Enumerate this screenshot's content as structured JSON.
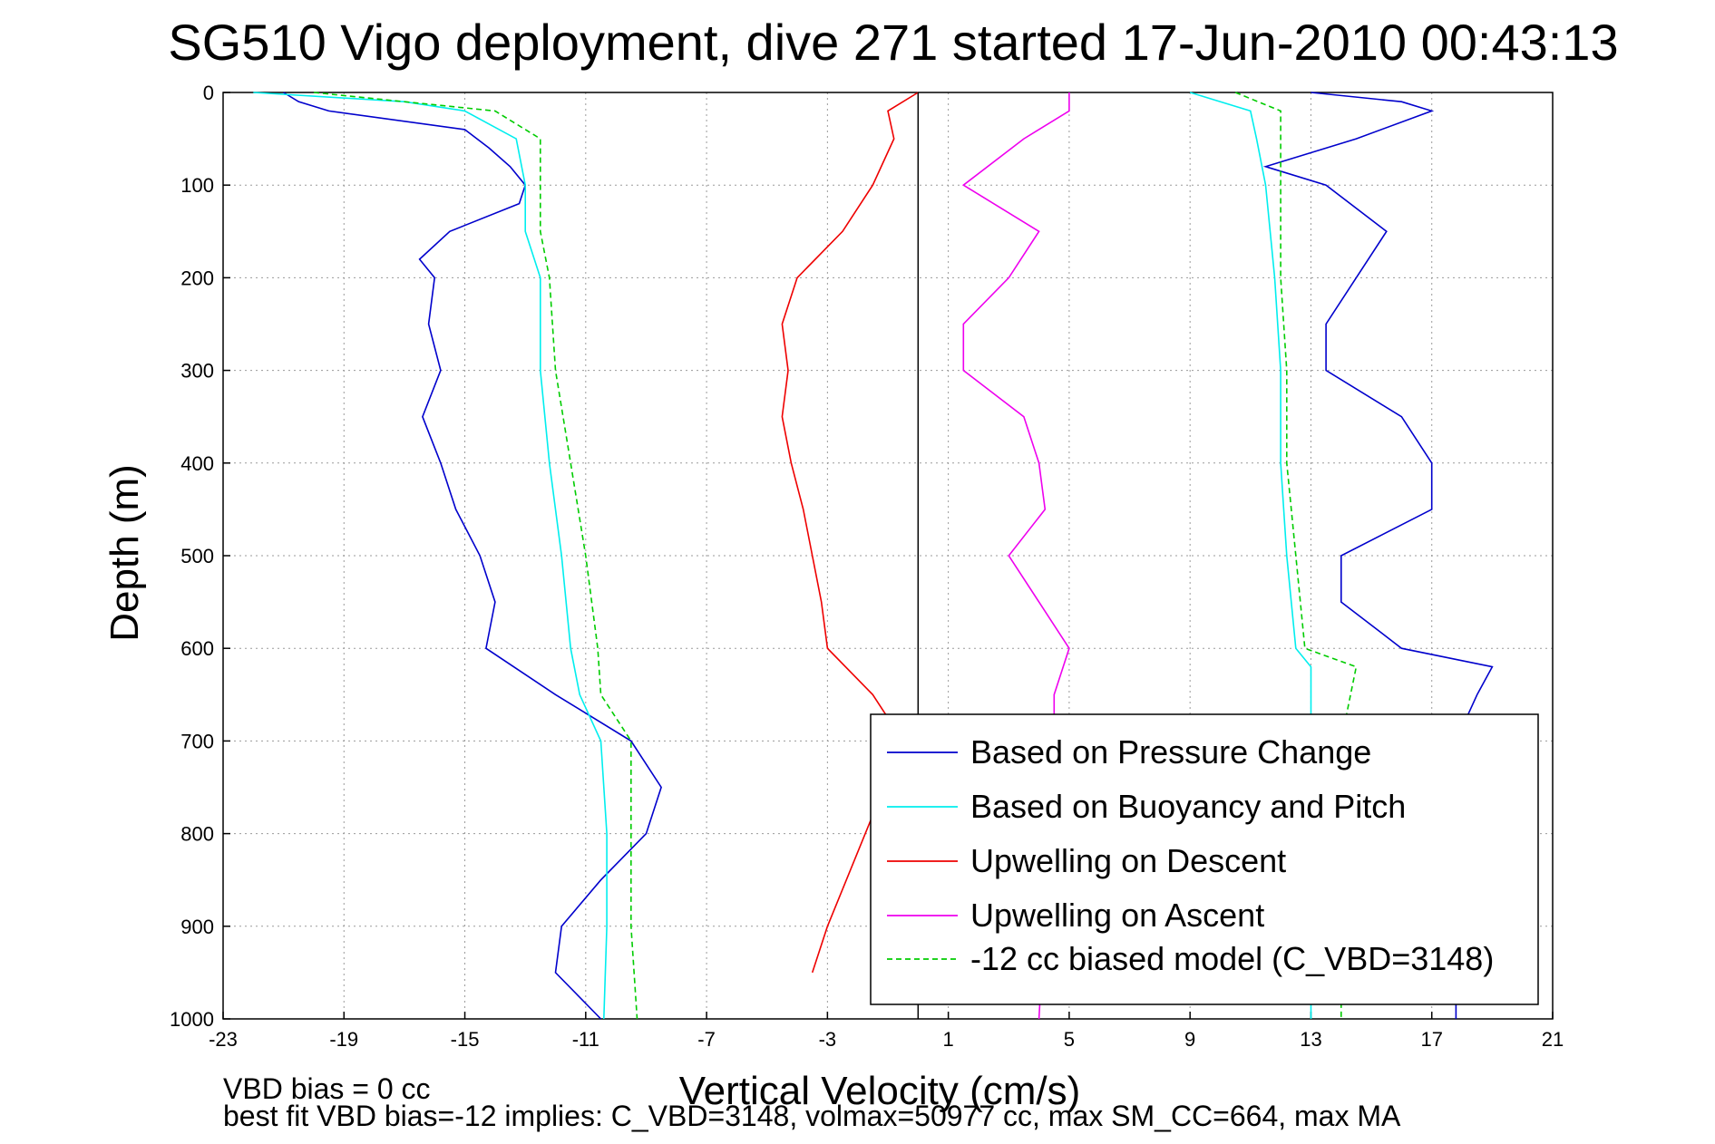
{
  "chart_data": {
    "type": "line",
    "title": "SG510 Vigo deployment, dive 271 started 17-Jun-2010 00:43:13",
    "xlabel": "Vertical Velocity (cm/s)",
    "ylabel": "Depth (m)",
    "xlim": [
      -23,
      21
    ],
    "ylim": [
      0,
      1000
    ],
    "y_reversed": true,
    "grid": true,
    "legend_position": "bottom-right",
    "x_ticks": [
      "-23",
      "-19",
      "-15",
      "-11",
      "-7",
      "-3",
      "1",
      "5",
      "9",
      "13",
      "17",
      "21"
    ],
    "y_ticks": [
      "0",
      "100",
      "200",
      "300",
      "400",
      "500",
      "600",
      "700",
      "800",
      "900",
      "1000"
    ],
    "vertical_reference_line_x": 0,
    "notes": [
      "VBD bias = 0 cc",
      "best fit VBD bias=-12 implies: C_VBD=3148, volmax=50977 cc, max SM_CC=664, max MA"
    ],
    "series": [
      {
        "name": "Based on Pressure Change",
        "color": "#0000cc",
        "style": "solid",
        "depth": [
          0,
          10,
          20,
          40,
          60,
          80,
          100,
          120,
          150,
          180,
          200,
          250,
          300,
          350,
          400,
          450,
          500,
          550,
          600,
          650,
          700,
          750,
          800,
          850,
          900,
          950,
          1000
        ],
        "velocity": [
          -21,
          -20.5,
          -19.5,
          -15,
          -14.2,
          -13.5,
          -13,
          -13.2,
          -15.5,
          -16.5,
          -16,
          -16.2,
          -15.8,
          -16.4,
          -15.8,
          -15.3,
          -14.5,
          -14,
          -14.3,
          -12,
          -9.5,
          -8.5,
          -9,
          -10.5,
          -11.8,
          -12,
          -10.5
        ],
        "depth_ascent": [
          0,
          10,
          20,
          50,
          80,
          100,
          150,
          200,
          250,
          300,
          350,
          400,
          450,
          500,
          550,
          600,
          620,
          650,
          700,
          900,
          1000
        ],
        "velocity_ascent": [
          13,
          16,
          17,
          14.5,
          11.5,
          13.5,
          15.5,
          14.5,
          13.5,
          13.5,
          16,
          17,
          17,
          14,
          14,
          16,
          19,
          18.5,
          17.8,
          17.8,
          17.8
        ]
      },
      {
        "name": "Based on Buoyancy and Pitch",
        "color": "#00eeee",
        "style": "solid",
        "depth": [
          0,
          10,
          20,
          50,
          100,
          150,
          200,
          300,
          400,
          500,
          600,
          650,
          700,
          800,
          900,
          1000
        ],
        "velocity": [
          -22,
          -17,
          -15,
          -13.3,
          -13,
          -13,
          -12.5,
          -12.5,
          -12.2,
          -11.8,
          -11.5,
          -11.2,
          -10.5,
          -10.3,
          -10.3,
          -10.4
        ],
        "depth_ascent": [
          0,
          20,
          50,
          100,
          200,
          300,
          400,
          500,
          600,
          620,
          700,
          1000
        ],
        "velocity_ascent": [
          9,
          11,
          11.2,
          11.5,
          11.8,
          12,
          12,
          12.2,
          12.5,
          13,
          13,
          13
        ]
      },
      {
        "name": "Upwelling on Descent",
        "color": "#ee0000",
        "style": "solid",
        "depth": [
          0,
          20,
          50,
          100,
          150,
          200,
          250,
          300,
          350,
          400,
          450,
          500,
          550,
          600,
          650,
          700,
          900,
          950
        ],
        "velocity": [
          0,
          -1,
          -0.8,
          -1.5,
          -2.5,
          -4,
          -4.5,
          -4.3,
          -4.5,
          -4.2,
          -3.8,
          -3.5,
          -3.2,
          -3,
          -1.5,
          -0.5,
          -3,
          -3.5
        ]
      },
      {
        "name": "Upwelling on Ascent",
        "color": "#ee00ee",
        "style": "solid",
        "depth": [
          0,
          20,
          50,
          100,
          150,
          200,
          250,
          300,
          350,
          400,
          450,
          500,
          550,
          600,
          650,
          700,
          1000
        ],
        "velocity": [
          5,
          5,
          3.5,
          1.5,
          4,
          3,
          1.5,
          1.5,
          3.5,
          4,
          4.2,
          3,
          4,
          5,
          4.5,
          4.5,
          4
        ]
      },
      {
        "name": "-12 cc biased model (C_VBD=3148)",
        "color": "#00cc00",
        "style": "dashed",
        "depth": [
          0,
          10,
          20,
          50,
          100,
          150,
          200,
          300,
          400,
          500,
          600,
          650,
          700,
          800,
          900,
          1000
        ],
        "velocity": [
          -20,
          -17,
          -14,
          -12.5,
          -12.5,
          -12.5,
          -12.2,
          -12,
          -11.5,
          -11,
          -10.6,
          -10.5,
          -9.5,
          -9.5,
          -9.5,
          -9.3
        ],
        "depth_ascent": [
          0,
          20,
          50,
          100,
          200,
          300,
          400,
          500,
          600,
          620,
          700,
          1000
        ],
        "velocity_ascent": [
          10.5,
          12,
          12,
          12,
          12,
          12.2,
          12.2,
          12.5,
          12.8,
          14.5,
          14,
          14
        ]
      }
    ]
  }
}
